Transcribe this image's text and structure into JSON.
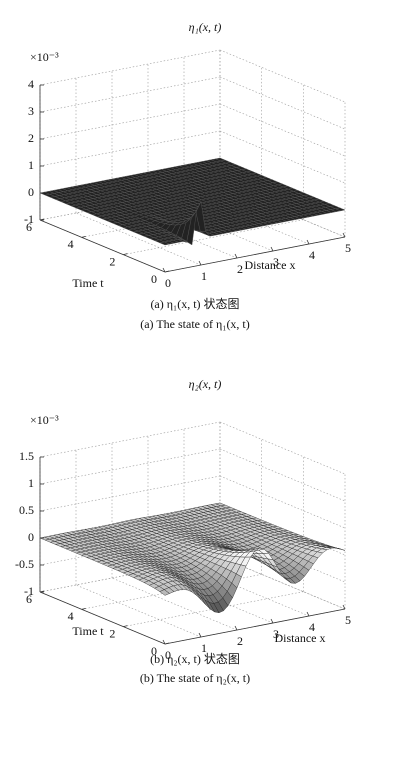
{
  "chart_data": [
    {
      "type": "surface",
      "title": "η₁(x, t)",
      "z_multiplier": "×10⁻³",
      "zlim": [
        -1,
        4
      ],
      "zticks": [
        -1,
        0,
        1,
        2,
        3,
        4
      ],
      "xlabel": "Distance x",
      "xlim": [
        0,
        5
      ],
      "xticks": [
        0,
        1,
        2,
        3,
        4,
        5
      ],
      "ylabel": "Time t",
      "ylim": [
        0,
        6
      ],
      "yticks": [
        0,
        2,
        4,
        6
      ],
      "grid": true,
      "color": "#222222",
      "caption_cn": "(a) η₁(x, t) 状态图",
      "caption_en": "(a) The state of η₁(x, t)"
    },
    {
      "type": "surface",
      "title": "η₂(x, t)",
      "z_multiplier": "×10⁻³",
      "zlim": [
        -1,
        1.5
      ],
      "zticks": [
        -1,
        -0.5,
        0,
        0.5,
        1,
        1.5
      ],
      "xlabel": "Distance x",
      "xlim": [
        0,
        5
      ],
      "xticks": [
        0,
        1,
        2,
        3,
        4,
        5
      ],
      "ylabel": "Time t",
      "ylim": [
        0,
        6
      ],
      "yticks": [
        0,
        2,
        4,
        6
      ],
      "grid": true,
      "color": "#d8d8d8",
      "caption_cn": "(b) η₂(x, t) 状态图",
      "caption_en": "(b) The state of η₂(x, t)"
    }
  ]
}
